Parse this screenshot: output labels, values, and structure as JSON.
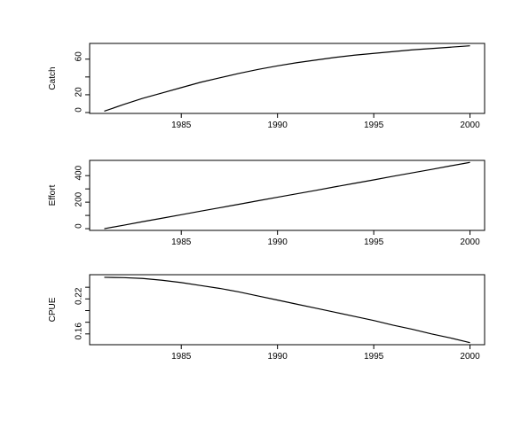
{
  "chart_data": [
    {
      "type": "line",
      "ylabel": "Catch",
      "x": [
        1981,
        1982,
        1983,
        1984,
        1985,
        1986,
        1987,
        1988,
        1989,
        1990,
        1991,
        1992,
        1993,
        1994,
        1995,
        1996,
        1997,
        1998,
        1999,
        2000
      ],
      "series": [
        {
          "color": "#000000",
          "values": [
            1.5,
            9,
            16,
            22,
            28,
            34,
            39,
            44,
            48.5,
            52.5,
            56,
            59,
            62,
            64.5,
            66.5,
            68.5,
            70.5,
            72,
            73.5,
            75
          ]
        }
      ],
      "xlim": [
        1980.24,
        2000.76
      ],
      "xticks": [
        1985,
        1990,
        1995,
        2000
      ],
      "ylim": [
        -1,
        77.7
      ],
      "yticks": [
        0,
        20,
        {
          "value": 40,
          "label": null
        },
        60
      ]
    },
    {
      "type": "line",
      "ylabel": "Effort",
      "x": [
        1981,
        1982,
        1983,
        1984,
        1985,
        1986,
        1987,
        1988,
        1989,
        1990,
        1991,
        1992,
        1993,
        1994,
        1995,
        1996,
        1997,
        1998,
        1999,
        2000
      ],
      "series": [
        {
          "color": "#000000",
          "values": [
            0,
            26,
            53,
            79,
            105,
            132,
            158,
            184,
            211,
            237,
            263,
            289,
            316,
            342,
            368,
            395,
            421,
            447,
            474,
            500
          ]
        }
      ],
      "xlim": [
        1980.24,
        2000.76
      ],
      "xticks": [
        1985,
        1990,
        1995,
        2000
      ],
      "ylim": [
        -13,
        515
      ],
      "yticks": [
        0,
        {
          "value": 100,
          "label": null
        },
        200,
        {
          "value": 300,
          "label": null
        },
        400
      ]
    },
    {
      "type": "line",
      "ylabel": "CPUE",
      "x": [
        1981,
        1982,
        1983,
        1984,
        1985,
        1986,
        1987,
        1988,
        1989,
        1990,
        1991,
        1992,
        1993,
        1994,
        1995,
        1996,
        1997,
        1998,
        1999,
        2000
      ],
      "series": [
        {
          "color": "#000000",
          "values": [
            0.257,
            0.2565,
            0.255,
            0.252,
            0.248,
            0.243,
            0.238,
            0.232,
            0.225,
            0.218,
            0.211,
            0.204,
            0.197,
            0.19,
            0.183,
            0.175,
            0.168,
            0.16,
            0.153,
            0.145
          ]
        }
      ],
      "xlim": [
        1980.24,
        2000.76
      ],
      "xticks": [
        1985,
        1990,
        1995,
        2000
      ],
      "ylim": [
        0.1415,
        0.2615
      ],
      "yticks": [
        0.16,
        {
          "value": 0.18,
          "label": null
        },
        {
          "value": 0.2,
          "label": null
        },
        0.22,
        {
          "value": 0.24,
          "label": null
        }
      ]
    }
  ]
}
